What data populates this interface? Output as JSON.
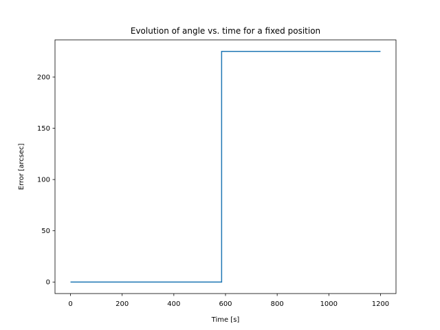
{
  "chart_data": {
    "type": "line",
    "title": "Evolution of angle vs. time for a fixed position",
    "xlabel": "Time [s]",
    "ylabel": "Error [arcsec]",
    "xlim": [
      -60,
      1260
    ],
    "ylim": [
      -11.25,
      236.25
    ],
    "xticks": [
      0,
      200,
      400,
      600,
      800,
      1000,
      1200
    ],
    "xtick_labels": [
      "0",
      "200",
      "400",
      "600",
      "800",
      "1000",
      "1200"
    ],
    "yticks": [
      0,
      50,
      100,
      150,
      200
    ],
    "ytick_labels": [
      "0",
      "50",
      "100",
      "150",
      "200"
    ],
    "grid": false,
    "series": [
      {
        "color": "#1f77b4",
        "x": [
          0,
          585,
          585,
          1200
        ],
        "y": [
          0,
          0,
          225,
          225
        ]
      }
    ]
  }
}
